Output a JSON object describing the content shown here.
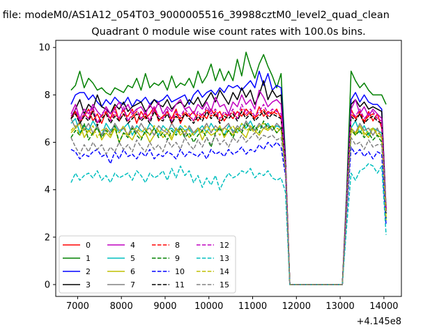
{
  "figure": {
    "suptitle": "n file: modeM0/AS1A12_054T03_9000005516_39988cztM0_level2_quad_clean",
    "title": "Quadrant 0 module wise count rates with 100.0s bins."
  },
  "chart_data": {
    "type": "line",
    "title": "Quadrant 0 module wise count rates with 100.0s bins.",
    "xlabel": "",
    "ylabel": "",
    "x_offset_label": "+4.145e8",
    "xlim": [
      6500,
      14400
    ],
    "ylim": [
      -0.5,
      10.3
    ],
    "xticks": [
      7000,
      8000,
      9000,
      10000,
      11000,
      12000,
      13000,
      14000
    ],
    "yticks": [
      0,
      2,
      4,
      6,
      8,
      10
    ],
    "grid": false,
    "legend_position": "lower-left",
    "legend_columns": 4,
    "x": {
      "start": 6850,
      "step": 100,
      "count": 73
    },
    "series": [
      {
        "name": "0",
        "color": "#ff0000",
        "dash": "solid",
        "values": [
          7.0,
          7.3,
          6.8,
          7.1,
          7.4,
          6.9,
          7.2,
          6.8,
          7.3,
          7.0,
          7.5,
          6.9,
          7.2,
          7.1,
          7.4,
          6.8,
          7.3,
          7.0,
          7.2,
          7.5,
          6.9,
          7.1,
          7.3,
          7.0,
          7.4,
          6.8,
          7.2,
          7.1,
          7.3,
          6.9,
          7.2,
          7.0,
          7.4,
          7.1,
          7.3,
          6.9,
          7.2,
          7.0,
          7.3,
          7.1,
          7.4,
          7.2,
          7.0,
          7.5,
          7.1,
          7.3,
          7.2,
          7.4,
          7.0,
          5.2,
          0,
          0,
          0,
          0,
          0,
          0,
          0,
          0,
          0,
          0,
          0,
          0,
          0,
          3.6,
          7.4,
          7.0,
          7.2,
          6.8,
          7.3,
          6.9,
          7.2,
          6.6,
          3.2
        ]
      },
      {
        "name": "1",
        "color": "#008000",
        "dash": "solid",
        "values": [
          8.2,
          8.4,
          9.0,
          8.3,
          8.7,
          8.5,
          8.2,
          8.3,
          8.1,
          8.0,
          8.3,
          8.2,
          8.1,
          8.4,
          8.3,
          8.7,
          8.2,
          8.9,
          8.3,
          8.5,
          8.4,
          8.6,
          8.2,
          8.8,
          8.3,
          8.5,
          8.4,
          8.7,
          8.3,
          9.0,
          8.5,
          8.8,
          9.3,
          8.6,
          9.1,
          8.6,
          9.0,
          8.6,
          9.5,
          8.8,
          9.8,
          9.2,
          8.7,
          9.3,
          9.7,
          9.2,
          8.8,
          8.3,
          8.9,
          5.4,
          0,
          0,
          0,
          0,
          0,
          0,
          0,
          0,
          0,
          0,
          0,
          0,
          0,
          4.0,
          9.0,
          8.6,
          8.3,
          8.5,
          8.2,
          8.0,
          8.0,
          8.0,
          7.6
        ]
      },
      {
        "name": "2",
        "color": "#0000ff",
        "dash": "solid",
        "values": [
          7.6,
          8.0,
          8.1,
          8.1,
          7.8,
          8.0,
          7.7,
          7.5,
          7.8,
          7.6,
          7.9,
          7.7,
          7.6,
          7.9,
          7.5,
          7.8,
          7.7,
          7.9,
          7.6,
          7.8,
          7.7,
          7.8,
          8.0,
          7.7,
          7.8,
          7.9,
          8.0,
          7.6,
          8.0,
          8.2,
          7.9,
          8.1,
          8.2,
          8.0,
          8.3,
          8.1,
          8.4,
          8.3,
          8.4,
          8.2,
          8.4,
          8.6,
          8.3,
          9.0,
          8.4,
          8.9,
          8.2,
          8.4,
          8.3,
          5.3,
          0,
          0,
          0,
          0,
          0,
          0,
          0,
          0,
          0,
          0,
          0,
          0,
          0,
          3.7,
          7.8,
          8.1,
          7.7,
          8.0,
          7.7,
          7.6,
          7.6,
          7.4,
          3.1
        ]
      },
      {
        "name": "3",
        "color": "#000000",
        "dash": "solid",
        "values": [
          7.0,
          7.4,
          7.8,
          7.2,
          7.6,
          7.4,
          8.0,
          7.5,
          7.4,
          7.2,
          7.6,
          7.4,
          7.7,
          7.3,
          7.5,
          7.6,
          7.7,
          7.3,
          7.5,
          7.8,
          7.6,
          7.5,
          7.8,
          7.4,
          7.6,
          7.7,
          7.5,
          7.8,
          7.6,
          7.9,
          7.5,
          7.8,
          8.1,
          7.7,
          8.2,
          7.9,
          7.6,
          8.1,
          7.8,
          8.3,
          7.9,
          8.2,
          7.6,
          8.0,
          8.6,
          7.8,
          8.2,
          7.9,
          8.0,
          5.2,
          0,
          0,
          0,
          0,
          0,
          0,
          0,
          0,
          0,
          0,
          0,
          0,
          0,
          3.6,
          7.6,
          7.8,
          7.5,
          7.7,
          7.4,
          7.5,
          7.4,
          7.3,
          3.2
        ]
      },
      {
        "name": "4",
        "color": "#bf00bf",
        "dash": "solid",
        "values": [
          7.2,
          7.6,
          7.0,
          7.4,
          7.2,
          7.6,
          7.3,
          7.1,
          7.5,
          7.2,
          7.4,
          7.7,
          7.3,
          7.6,
          7.2,
          7.4,
          7.5,
          7.2,
          7.6,
          7.3,
          7.7,
          7.2,
          7.5,
          7.3,
          7.6,
          7.8,
          7.4,
          7.5,
          7.2,
          7.6,
          7.4,
          7.7,
          7.3,
          7.9,
          7.5,
          7.6,
          7.2,
          7.7,
          7.5,
          8.0,
          7.6,
          7.8,
          7.4,
          8.2,
          7.9,
          7.5,
          7.7,
          7.8,
          7.6,
          5.1,
          0,
          0,
          0,
          0,
          0,
          0,
          0,
          0,
          0,
          0,
          0,
          0,
          0,
          3.6,
          7.4,
          7.8,
          7.2,
          7.5,
          7.1,
          7.4,
          7.2,
          7.0,
          3.0
        ]
      },
      {
        "name": "5",
        "color": "#00bfbf",
        "dash": "solid",
        "values": [
          6.8,
          7.0,
          6.4,
          6.7,
          6.5,
          6.9,
          6.6,
          6.3,
          6.8,
          6.5,
          6.7,
          6.4,
          6.6,
          6.8,
          6.3,
          6.7,
          6.5,
          6.4,
          6.8,
          6.6,
          6.3,
          6.7,
          6.5,
          6.6,
          6.4,
          6.7,
          6.5,
          6.6,
          6.3,
          6.5,
          6.7,
          6.4,
          6.8,
          6.5,
          6.6,
          6.3,
          6.7,
          6.5,
          6.4,
          6.8,
          6.6,
          6.9,
          6.5,
          6.7,
          6.6,
          6.8,
          6.5,
          6.7,
          6.6,
          5.0,
          0,
          0,
          0,
          0,
          0,
          0,
          0,
          0,
          0,
          0,
          0,
          0,
          0,
          3.4,
          6.6,
          6.9,
          6.4,
          6.7,
          6.3,
          6.6,
          6.5,
          6.4,
          2.8
        ]
      },
      {
        "name": "6",
        "color": "#bfbf00",
        "dash": "solid",
        "values": [
          6.4,
          6.6,
          6.8,
          6.2,
          6.5,
          6.3,
          6.7,
          6.1,
          6.4,
          6.2,
          6.6,
          6.0,
          6.4,
          6.3,
          6.1,
          6.5,
          6.2,
          6.4,
          6.0,
          6.3,
          6.5,
          6.2,
          6.4,
          6.1,
          6.6,
          6.3,
          6.5,
          6.2,
          6.4,
          6.6,
          6.1,
          6.5,
          6.3,
          6.4,
          6.7,
          6.2,
          6.5,
          6.3,
          6.6,
          6.4,
          6.2,
          6.7,
          6.5,
          6.3,
          6.6,
          6.5,
          6.7,
          6.4,
          6.6,
          5.0,
          0,
          0,
          0,
          0,
          0,
          0,
          0,
          0,
          0,
          0,
          0,
          0,
          0,
          3.3,
          6.5,
          6.3,
          6.7,
          6.4,
          6.2,
          6.6,
          6.3,
          6.2,
          2.7
        ]
      },
      {
        "name": "7",
        "color": "#808080",
        "dash": "solid",
        "values": [
          7.0,
          6.6,
          6.9,
          6.5,
          6.8,
          6.4,
          6.7,
          6.3,
          6.6,
          6.4,
          6.8,
          6.5,
          6.6,
          6.3,
          6.7,
          6.4,
          6.8,
          6.5,
          6.6,
          6.3,
          6.7,
          6.5,
          6.4,
          6.8,
          6.5,
          6.6,
          6.3,
          6.7,
          6.4,
          6.6,
          6.5,
          6.8,
          6.4,
          6.7,
          6.5,
          6.6,
          6.8,
          6.4,
          6.7,
          6.5,
          6.9,
          6.6,
          6.5,
          6.8,
          6.6,
          6.7,
          6.5,
          6.8,
          6.6,
          5.0,
          0,
          0,
          0,
          0,
          0,
          0,
          0,
          0,
          0,
          0,
          0,
          0,
          0,
          3.3,
          6.6,
          6.4,
          6.8,
          6.5,
          6.6,
          6.3,
          6.6,
          6.2,
          2.8
        ]
      },
      {
        "name": "8",
        "color": "#ff0000",
        "dash": "dashed",
        "values": [
          7.0,
          7.3,
          6.9,
          7.2,
          7.0,
          7.4,
          6.8,
          7.1,
          7.3,
          6.9,
          7.2,
          7.0,
          7.4,
          6.9,
          7.1,
          7.3,
          7.0,
          7.2,
          6.9,
          7.4,
          7.1,
          7.0,
          7.3,
          6.8,
          7.2,
          7.0,
          7.3,
          7.1,
          6.9,
          7.2,
          7.0,
          7.4,
          7.1,
          7.3,
          6.9,
          7.2,
          7.1,
          7.3,
          7.0,
          7.4,
          7.1,
          7.3,
          7.0,
          7.2,
          7.4,
          7.1,
          7.3,
          7.2,
          7.1,
          5.2,
          0,
          0,
          0,
          0,
          0,
          0,
          0,
          0,
          0,
          0,
          0,
          0,
          0,
          3.5,
          7.2,
          7.0,
          7.3,
          6.9,
          7.1,
          7.2,
          7.0,
          6.9,
          3.1
        ]
      },
      {
        "name": "9",
        "color": "#008000",
        "dash": "dashed",
        "values": [
          6.2,
          6.5,
          6.3,
          6.8,
          6.1,
          6.4,
          6.6,
          6.2,
          6.5,
          6.3,
          6.7,
          6.0,
          6.4,
          6.2,
          6.6,
          6.3,
          6.1,
          6.5,
          6.3,
          6.6,
          6.2,
          6.4,
          6.1,
          6.5,
          6.3,
          6.6,
          6.2,
          6.4,
          6.0,
          6.3,
          6.5,
          6.2,
          5.8,
          6.4,
          6.6,
          6.3,
          6.5,
          6.2,
          6.6,
          6.4,
          6.8,
          6.5,
          6.7,
          6.4,
          6.9,
          6.6,
          6.7,
          6.4,
          6.6,
          4.9,
          0,
          0,
          0,
          0,
          0,
          0,
          0,
          0,
          0,
          0,
          0,
          0,
          0,
          3.3,
          6.6,
          6.3,
          6.5,
          6.2,
          6.4,
          6.1,
          6.3,
          6.0,
          2.7
        ]
      },
      {
        "name": "10",
        "color": "#0000ff",
        "dash": "dashed",
        "values": [
          5.7,
          5.6,
          5.3,
          5.5,
          5.4,
          5.6,
          5.7,
          5.4,
          5.5,
          5.1,
          5.6,
          5.3,
          5.7,
          5.4,
          5.5,
          5.3,
          5.6,
          5.4,
          5.7,
          5.3,
          5.5,
          5.4,
          5.6,
          5.5,
          5.3,
          5.7,
          5.4,
          5.6,
          5.5,
          5.4,
          5.6,
          5.3,
          5.7,
          5.5,
          5.6,
          5.4,
          5.7,
          5.5,
          5.6,
          5.8,
          5.5,
          5.7,
          5.6,
          5.9,
          5.7,
          6.0,
          5.8,
          6.0,
          5.8,
          4.6,
          0,
          0,
          0,
          0,
          0,
          0,
          0,
          0,
          0,
          0,
          0,
          0,
          0,
          3.0,
          5.8,
          5.5,
          5.7,
          5.4,
          5.6,
          5.3,
          5.6,
          5.5,
          2.5
        ]
      },
      {
        "name": "11",
        "color": "#000000",
        "dash": "dashed",
        "values": [
          7.0,
          7.2,
          6.8,
          7.1,
          6.9,
          7.3,
          6.7,
          7.0,
          7.2,
          6.8,
          7.1,
          6.9,
          7.2,
          6.8,
          7.0,
          7.2,
          6.9,
          7.1,
          6.8,
          7.3,
          7.0,
          6.9,
          7.2,
          6.8,
          7.1,
          6.9,
          7.2,
          7.0,
          6.8,
          7.1,
          6.9,
          7.3,
          7.0,
          7.2,
          6.8,
          7.1,
          7.0,
          7.2,
          6.9,
          7.3,
          7.0,
          7.2,
          6.9,
          7.1,
          7.3,
          7.0,
          7.2,
          7.1,
          7.0,
          5.1,
          0,
          0,
          0,
          0,
          0,
          0,
          0,
          0,
          0,
          0,
          0,
          0,
          0,
          3.5,
          7.1,
          6.9,
          7.2,
          6.8,
          7.0,
          7.1,
          6.9,
          6.8,
          3.0
        ]
      },
      {
        "name": "12",
        "color": "#bf00bf",
        "dash": "dashed",
        "values": [
          7.1,
          7.4,
          6.9,
          7.2,
          7.0,
          7.5,
          6.8,
          7.2,
          7.4,
          6.9,
          7.3,
          7.0,
          7.5,
          6.9,
          7.2,
          7.4,
          7.0,
          7.3,
          6.9,
          7.5,
          7.1,
          7.0,
          7.4,
          6.9,
          7.3,
          7.1,
          7.4,
          7.2,
          6.9,
          7.3,
          7.1,
          7.5,
          7.2,
          7.4,
          7.0,
          7.3,
          7.1,
          7.4,
          7.0,
          7.6,
          7.2,
          7.4,
          7.1,
          7.3,
          7.6,
          7.2,
          7.4,
          7.3,
          7.2,
          5.2,
          0,
          0,
          0,
          0,
          0,
          0,
          0,
          0,
          0,
          0,
          0,
          0,
          0,
          3.6,
          7.3,
          7.1,
          7.4,
          7.0,
          7.2,
          7.3,
          7.0,
          6.9,
          3.1
        ]
      },
      {
        "name": "13",
        "color": "#00bfbf",
        "dash": "dashed",
        "values": [
          4.3,
          4.7,
          4.4,
          4.6,
          4.7,
          4.5,
          4.8,
          4.4,
          4.6,
          4.3,
          4.7,
          4.5,
          4.6,
          4.7,
          4.4,
          4.8,
          4.6,
          4.3,
          4.7,
          4.5,
          4.6,
          4.8,
          4.4,
          4.9,
          4.5,
          5.0,
          4.6,
          4.8,
          4.3,
          4.6,
          4.1,
          4.5,
          4.2,
          4.6,
          4.0,
          4.4,
          4.7,
          4.5,
          4.6,
          4.8,
          4.7,
          4.9,
          4.5,
          4.7,
          4.6,
          4.8,
          4.5,
          4.4,
          4.5,
          3.9,
          0,
          0,
          0,
          0,
          0,
          0,
          0,
          0,
          0,
          0,
          0,
          0,
          0,
          2.5,
          4.7,
          4.4,
          4.8,
          4.9,
          5.1,
          5.0,
          4.7,
          5.0,
          2.1
        ]
      },
      {
        "name": "14",
        "color": "#bfbf00",
        "dash": "dashed",
        "values": [
          6.5,
          6.7,
          6.3,
          6.6,
          6.4,
          6.7,
          6.2,
          6.5,
          6.6,
          6.3,
          6.6,
          6.4,
          6.7,
          6.3,
          6.5,
          6.6,
          6.4,
          6.6,
          6.3,
          6.7,
          6.5,
          6.4,
          6.6,
          6.2,
          6.6,
          6.4,
          6.7,
          6.5,
          6.3,
          6.6,
          6.4,
          6.7,
          6.5,
          6.6,
          6.3,
          6.6,
          6.5,
          6.7,
          6.4,
          6.8,
          6.5,
          6.6,
          6.4,
          6.7,
          6.8,
          6.5,
          6.7,
          6.6,
          6.5,
          4.9,
          0,
          0,
          0,
          0,
          0,
          0,
          0,
          0,
          0,
          0,
          0,
          0,
          0,
          3.3,
          6.6,
          6.4,
          6.7,
          6.3,
          6.5,
          6.6,
          6.4,
          6.3,
          2.8
        ]
      },
      {
        "name": "15",
        "color": "#808080",
        "dash": "dashed",
        "values": [
          6.2,
          5.8,
          5.5,
          5.9,
          5.6,
          6.0,
          5.7,
          5.9,
          5.5,
          5.8,
          5.6,
          6.0,
          5.7,
          5.9,
          5.6,
          6.1,
          5.8,
          5.6,
          6.0,
          5.7,
          5.9,
          5.6,
          6.1,
          5.8,
          6.0,
          5.7,
          6.2,
          5.9,
          5.7,
          6.1,
          5.8,
          6.2,
          5.9,
          6.3,
          5.9,
          6.1,
          5.8,
          6.2,
          6.0,
          6.3,
          6.0,
          6.2,
          6.4,
          6.1,
          6.3,
          6.2,
          6.3,
          6.1,
          6.2,
          4.8,
          0,
          0,
          0,
          0,
          0,
          0,
          0,
          0,
          0,
          0,
          0,
          0,
          0,
          3.2,
          6.2,
          5.9,
          6.0,
          5.7,
          6.1,
          5.8,
          5.9,
          5.9,
          3.4
        ]
      }
    ]
  }
}
